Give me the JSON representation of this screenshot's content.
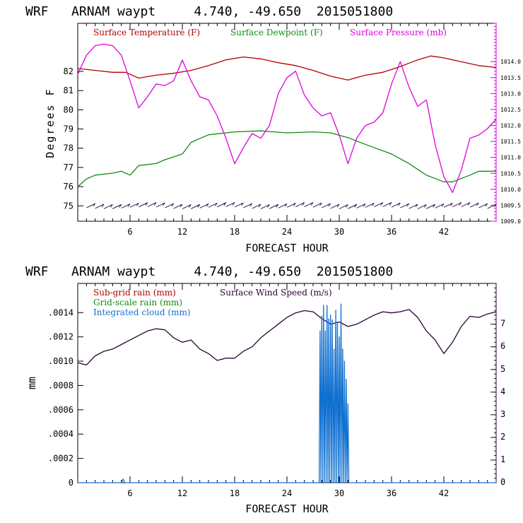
{
  "chart_data": [
    {
      "type": "line",
      "title": "WRF   ARNAM waypt     4.740, -49.650  2015051800",
      "xlabel": "FORECAST HOUR",
      "ylabel": "Degrees F",
      "xlim": [
        0,
        48
      ],
      "ylim": [
        74.2,
        84.5
      ],
      "x_ticks": [
        "6",
        "12",
        "18",
        "24",
        "30",
        "36",
        "42"
      ],
      "y_ticks": [
        "75",
        "76",
        "77",
        "78",
        "79",
        "80",
        "81",
        "82"
      ],
      "y2_label": "",
      "y2lim": [
        1009.0,
        1015.2
      ],
      "y2_ticks": [
        "1009.0",
        "1009.5",
        "1010.0",
        "1010.5",
        "1011.0",
        "1011.5",
        "1012.0",
        "1012.5",
        "1013.0",
        "1013.5",
        "1014.0"
      ],
      "legend": [
        {
          "name": "Surface Temperature (F)",
          "color": "#b20000"
        },
        {
          "name": "Surface Dewpoint (F)",
          "color": "#128a12"
        },
        {
          "name": "Surface Pressure (mb)",
          "color": "#e000e0"
        }
      ],
      "series": [
        {
          "name": "Surface Temperature (F)",
          "axis": "left",
          "color": "#b20000",
          "x": [
            0,
            2,
            4,
            5.5,
            7,
            9,
            11,
            13,
            15,
            17,
            19,
            21,
            23,
            25,
            27,
            29,
            31,
            33,
            35,
            37,
            39,
            40.5,
            42,
            44,
            46,
            48
          ],
          "y": [
            82.15,
            82.05,
            81.95,
            81.95,
            81.65,
            81.8,
            81.9,
            82.05,
            82.3,
            82.6,
            82.75,
            82.65,
            82.45,
            82.3,
            82.05,
            81.75,
            81.55,
            81.8,
            81.95,
            82.25,
            82.6,
            82.8,
            82.7,
            82.5,
            82.3,
            82.2
          ]
        },
        {
          "name": "Surface Dewpoint (F)",
          "axis": "left",
          "color": "#128a12",
          "x": [
            0,
            1,
            2,
            4,
            5,
            6,
            7,
            9,
            10,
            12,
            13,
            15,
            18,
            21,
            24,
            27,
            29,
            31,
            33,
            36,
            38,
            40,
            42,
            43,
            45,
            46,
            48
          ],
          "y": [
            76.0,
            76.4,
            76.6,
            76.7,
            76.8,
            76.6,
            77.1,
            77.2,
            77.4,
            77.7,
            78.3,
            78.7,
            78.85,
            78.9,
            78.8,
            78.85,
            78.8,
            78.55,
            78.2,
            77.7,
            77.2,
            76.6,
            76.25,
            76.25,
            76.6,
            76.8,
            76.8
          ]
        },
        {
          "name": "Surface Pressure (mb)",
          "axis": "right",
          "color": "#e000e0",
          "x": [
            0,
            1,
            2,
            3,
            4,
            5,
            6,
            7,
            8,
            9,
            10,
            11,
            12,
            13,
            14,
            15,
            16,
            17,
            18,
            19,
            20,
            21,
            22,
            23,
            24,
            25,
            26,
            27,
            28,
            29,
            30,
            31,
            32,
            33,
            34,
            35,
            36,
            37,
            38,
            39,
            40,
            41,
            42,
            43,
            44,
            45,
            46,
            47,
            48
          ],
          "y": [
            1013.6,
            1014.2,
            1014.5,
            1014.55,
            1014.5,
            1014.2,
            1013.4,
            1012.55,
            1012.9,
            1013.3,
            1013.25,
            1013.4,
            1014.05,
            1013.4,
            1012.9,
            1012.8,
            1012.3,
            1011.6,
            1010.8,
            1011.3,
            1011.75,
            1011.6,
            1012.0,
            1013.0,
            1013.5,
            1013.7,
            1012.95,
            1012.55,
            1012.3,
            1012.4,
            1011.7,
            1010.8,
            1011.6,
            1012.0,
            1012.1,
            1012.4,
            1013.3,
            1014.0,
            1013.2,
            1012.6,
            1012.8,
            1011.4,
            1010.4,
            1009.9,
            1010.6,
            1011.6,
            1011.7,
            1011.9,
            1012.2
          ]
        }
      ],
      "wind_barbs": {
        "x_start": 1,
        "x_end": 48,
        "count": 47,
        "color": "#1a0033"
      }
    },
    {
      "type": "line",
      "title": "WRF   ARNAM waypt     4.740, -49.650  2015051800",
      "xlabel": "FORECAST HOUR",
      "ylabel": "mm",
      "xlim": [
        0,
        48
      ],
      "ylim": [
        0,
        0.00164
      ],
      "x_ticks": [
        "6",
        "12",
        "18",
        "24",
        "30",
        "36",
        "42"
      ],
      "y_ticks": [
        "0",
        ".0002",
        ".0004",
        ".0006",
        ".0008",
        ".0010",
        ".0012",
        ".0014"
      ],
      "y2_label": "",
      "y2lim": [
        0,
        8.8
      ],
      "y2_ticks": [
        "0",
        "1",
        "2",
        "3",
        "4",
        "5",
        "6",
        "7"
      ],
      "legend": [
        {
          "name": "Sub-grid rain (mm)",
          "color": "#b20000"
        },
        {
          "name": "Grid-scale rain (mm)",
          "color": "#128a12"
        },
        {
          "name": "Integrated cloud (mm)",
          "color": "#1070d0"
        },
        {
          "name": "Surface Wind Speed (m/s)",
          "color": "#2a0033"
        }
      ],
      "series": [
        {
          "name": "Surface Wind Speed (m/s)",
          "axis": "right",
          "color": "#2a0033",
          "x": [
            0,
            1,
            2,
            3,
            4,
            5,
            6,
            7,
            8,
            9,
            10,
            11,
            12,
            13,
            14,
            15,
            16,
            17,
            18,
            19,
            20,
            21,
            22,
            23,
            24,
            25,
            26,
            27,
            28,
            29,
            30,
            31,
            32,
            33,
            34,
            35,
            36,
            37,
            38,
            39,
            40,
            41,
            42,
            43,
            44,
            45,
            46,
            47,
            48
          ],
          "y": [
            5.3,
            5.2,
            5.6,
            5.8,
            5.9,
            6.1,
            6.3,
            6.5,
            6.7,
            6.8,
            6.75,
            6.4,
            6.2,
            6.3,
            5.9,
            5.7,
            5.4,
            5.5,
            5.5,
            5.8,
            6.0,
            6.4,
            6.7,
            7.0,
            7.3,
            7.5,
            7.6,
            7.55,
            7.25,
            7.0,
            7.1,
            6.9,
            7.0,
            7.2,
            7.4,
            7.55,
            7.5,
            7.55,
            7.65,
            7.3,
            6.7,
            6.3,
            5.7,
            6.2,
            6.9,
            7.35,
            7.3,
            7.45,
            7.55
          ]
        },
        {
          "name": "Integrated cloud (mm)",
          "axis": "left",
          "color": "#1070d0",
          "x": [
            0,
            5.0,
            5.2,
            5.4,
            27.7,
            27.8,
            27.9,
            28.0,
            28.1,
            28.2,
            28.3,
            28.4,
            28.5,
            28.6,
            28.7,
            28.8,
            28.9,
            29.0,
            29.1,
            29.2,
            29.3,
            29.4,
            29.5,
            29.6,
            29.7,
            29.8,
            29.9,
            30.0,
            30.1,
            30.2,
            30.3,
            30.4,
            30.5,
            30.6,
            30.7,
            30.8,
            30.9,
            31.0,
            31.1,
            48
          ],
          "y": [
            0,
            0,
            3e-05,
            0,
            0,
            0.00125,
            0.0,
            0.00137,
            0.0,
            0.00146,
            0.0,
            0.00125,
            0.0,
            0.00146,
            0.0,
            0.00135,
            0.0,
            0.00138,
            0.0,
            0.00134,
            0.0,
            0.0011,
            0.0,
            0.00142,
            0.0,
            0.00131,
            0.0,
            0.0012,
            0.0,
            0.00147,
            0.0,
            0.0011,
            0.0,
            0.001,
            0.0,
            0.00085,
            0.0,
            0.00065,
            0,
            0
          ]
        }
      ]
    }
  ]
}
